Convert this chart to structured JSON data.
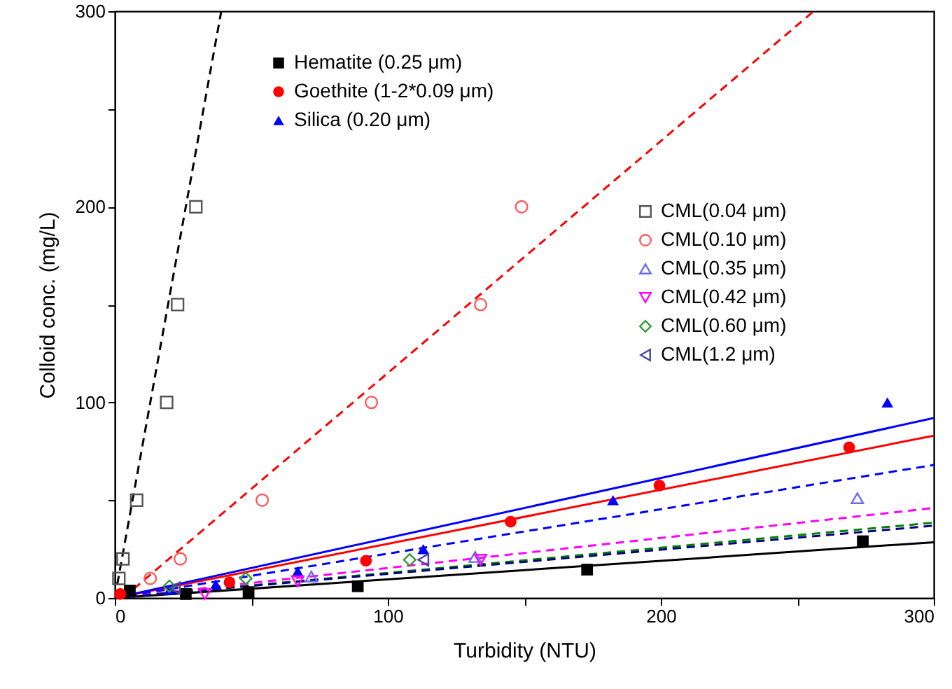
{
  "chart_data": {
    "type": "scatter",
    "xlabel": "Turbidity (NTU)",
    "ylabel": "Colloid conc. (mg/L)",
    "xlim": [
      0,
      300
    ],
    "ylim": [
      0,
      300
    ],
    "xticks": [
      0,
      {
        "value": 50,
        "label": null
      },
      100,
      {
        "value": 150,
        "label": null
      },
      200,
      {
        "value": 250,
        "label": null
      },
      300
    ],
    "yticks": [
      0,
      {
        "value": 50,
        "label": null
      },
      100,
      {
        "value": 150,
        "label": null
      },
      200,
      {
        "value": 250,
        "label": null
      },
      300
    ],
    "grid": false,
    "legend": "top left",
    "series": [
      {
        "name": "Hematite (0.25 μm)",
        "marker": "square",
        "color": "#000000",
        "x": [
          5.5,
          26,
          49,
          89,
          173,
          274
        ],
        "values": [
          3.8,
          2,
          3,
          6,
          14.5,
          29
        ]
      },
      {
        "type": "line",
        "line_style": "solid",
        "color": "#000000",
        "x": [
          0,
          300
        ],
        "values": [
          0,
          28.5
        ]
      },
      {
        "name": "Goethite (1-2*0.09 μm)",
        "marker": "circle",
        "color": "#ff0000",
        "x": [
          2,
          42,
          92,
          145,
          199.5,
          269
        ],
        "values": [
          2,
          8,
          19,
          39,
          57.5,
          77
        ]
      },
      {
        "type": "line",
        "line_style": "solid",
        "color": "#ff0000",
        "x": [
          0,
          300
        ],
        "values": [
          0,
          83
        ]
      },
      {
        "name": "Silica (0.20 μm)",
        "marker": "triangle",
        "color": "#0000ff",
        "x": [
          20,
          37,
          67,
          113,
          182.5,
          283
        ],
        "values": [
          4,
          7,
          13.6,
          25,
          50,
          100
        ]
      },
      {
        "type": "line",
        "line_style": "solid",
        "color": "#0000ff",
        "x": [
          0,
          300
        ],
        "values": [
          0,
          92
        ]
      },
      {
        "name": "CML(0.04 μm)",
        "marker": "square",
        "color": "#555555",
        "x": [
          1.5,
          3,
          8,
          19,
          23,
          29.7
        ],
        "values": [
          10,
          20,
          50,
          100,
          150,
          200
        ]
      },
      {
        "type": "line",
        "line_style": "dashed",
        "color": "#000000",
        "x": [
          0,
          39
        ],
        "values": [
          0,
          300
        ]
      },
      {
        "name": "CML(0.10 μm)",
        "marker": "circle",
        "color": "#ff5a5a",
        "x": [
          13,
          24,
          54,
          94,
          134,
          149
        ],
        "values": [
          10,
          20,
          50,
          100,
          150,
          200
        ]
      },
      {
        "type": "line",
        "line_style": "dashed",
        "color": "#ff0000",
        "x": [
          3,
          256
        ],
        "values": [
          0,
          300
        ]
      },
      {
        "name": "CML(0.35 μm)",
        "marker": "triangle",
        "color": "#6a6aff",
        "x": [
          72,
          132,
          272
        ],
        "values": [
          11,
          21,
          51
        ]
      },
      {
        "type": "line",
        "line_style": "dashed",
        "color": "#0000ff",
        "x": [
          0,
          300
        ],
        "values": [
          0,
          68
        ]
      },
      {
        "name": "CML(0.42 μm)",
        "marker": "triangle-down",
        "color": "#ff00ff",
        "x": [
          33,
          67,
          134
        ],
        "values": [
          2,
          8.5,
          19.5
        ]
      },
      {
        "type": "line",
        "line_style": "dashed",
        "color": "#ff00ff",
        "x": [
          0,
          300
        ],
        "values": [
          0,
          46
        ]
      },
      {
        "name": "CML(0.60 μm)",
        "marker": "diamond",
        "color": "#339933",
        "x": [
          20,
          48,
          108
        ],
        "values": [
          6,
          10,
          19.5
        ]
      },
      {
        "type": "line",
        "line_style": "dashed",
        "color": "#008000",
        "x": [
          0,
          300
        ],
        "values": [
          0,
          38.5
        ]
      },
      {
        "name": "CML(1.2 μm)",
        "marker": "triangle-left",
        "color": "#4444aa",
        "x": [
          22,
          113
        ],
        "values": [
          5,
          19.5
        ]
      },
      {
        "type": "line",
        "line_style": "dashed",
        "color": "#000080",
        "x": [
          0,
          300
        ],
        "values": [
          0,
          37
        ]
      }
    ]
  }
}
